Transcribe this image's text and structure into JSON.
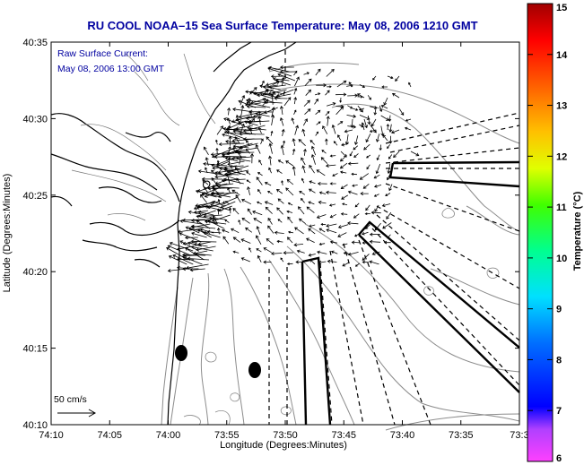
{
  "chart_data": {
    "type": "vector-field",
    "title": "RU COOL  NOAA–15  Sea Surface Temperature:  May 08, 2006 1210 GMT",
    "xlabel": "Longitude (Degrees:Minutes)",
    "ylabel": "Latitude (Degrees:Minutes)",
    "x_ticks": [
      "74:10",
      "74:05",
      "74:00",
      "73:55",
      "73:50",
      "73:45",
      "73:40",
      "73:35",
      "73:3"
    ],
    "y_ticks": [
      "40:35",
      "40:30",
      "40:25",
      "40:20",
      "40:15",
      "40:10"
    ],
    "xlim_minutes_west": [
      10,
      30
    ],
    "ylim_minutes_north": [
      10,
      35
    ],
    "annotations": {
      "current_label": "Raw Surface Current:",
      "current_time": "May 08, 2006 13:00 GMT",
      "scale_label": "50 cm/s"
    },
    "colorbar": {
      "label": "Temperature (°C)",
      "ticks": [
        "15",
        "14",
        "13",
        "12",
        "11",
        "10",
        "9",
        "8",
        "7",
        "6"
      ],
      "range": [
        6,
        15
      ]
    },
    "grid": false,
    "legend": "none",
    "colors": {
      "title": "#0000a0",
      "annotation": "#0000a0",
      "land": "#000000",
      "vectors": "#000000",
      "bathymetry": "#888888"
    }
  }
}
